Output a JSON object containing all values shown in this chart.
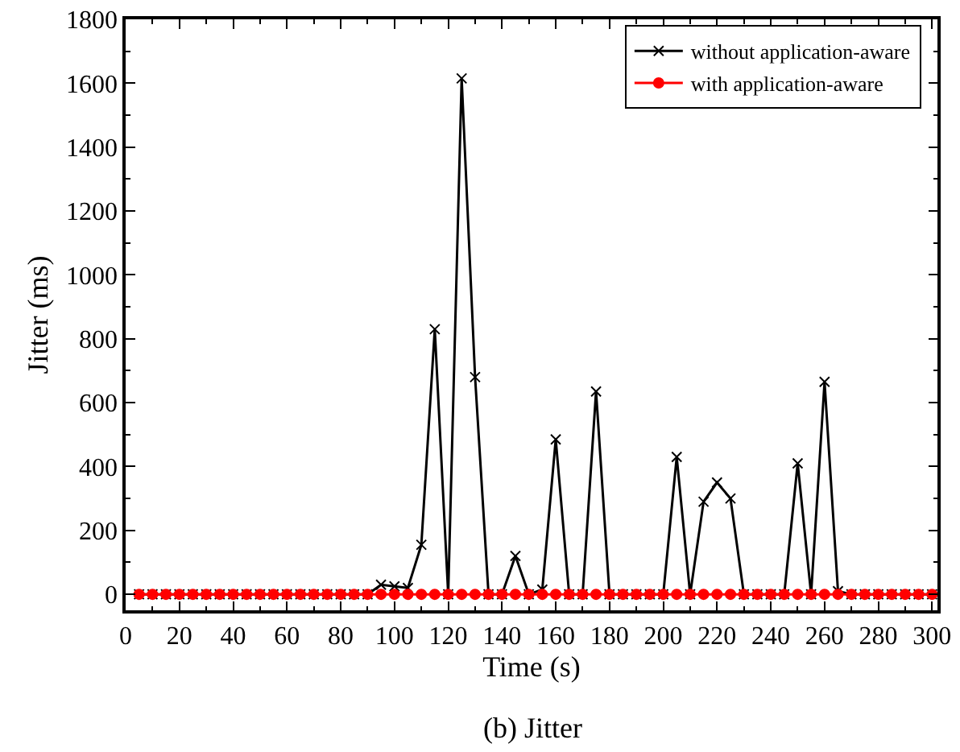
{
  "chart_data": {
    "type": "line",
    "title": "(b) Jitter",
    "xlabel": "Time (s)",
    "ylabel": "Jitter (ms)",
    "x": [
      5,
      10,
      15,
      20,
      25,
      30,
      35,
      40,
      45,
      50,
      55,
      60,
      65,
      70,
      75,
      80,
      85,
      90,
      95,
      100,
      105,
      110,
      115,
      120,
      125,
      130,
      135,
      140,
      145,
      150,
      155,
      160,
      165,
      170,
      175,
      180,
      185,
      190,
      195,
      200,
      205,
      210,
      215,
      220,
      225,
      230,
      235,
      240,
      245,
      250,
      255,
      260,
      265,
      270,
      275,
      280,
      285,
      290,
      295,
      300
    ],
    "series": [
      {
        "name": "without application-aware",
        "color": "#000000",
        "marker": "cross",
        "values": [
          0,
          0,
          0,
          0,
          0,
          0,
          0,
          0,
          0,
          0,
          0,
          0,
          0,
          0,
          0,
          0,
          0,
          0,
          30,
          25,
          20,
          155,
          830,
          0,
          1615,
          680,
          0,
          0,
          120,
          0,
          15,
          485,
          0,
          0,
          635,
          0,
          0,
          0,
          0,
          0,
          430,
          0,
          290,
          350,
          300,
          0,
          0,
          0,
          0,
          410,
          0,
          665,
          10,
          0,
          0,
          0,
          0,
          0,
          0,
          0
        ]
      },
      {
        "name": "with application-aware",
        "color": "#ff0000",
        "marker": "circle",
        "values": [
          0,
          0,
          0,
          0,
          0,
          0,
          0,
          0,
          0,
          0,
          0,
          0,
          0,
          0,
          0,
          0,
          0,
          0,
          0,
          0,
          0,
          0,
          0,
          0,
          0,
          0,
          0,
          0,
          0,
          0,
          0,
          0,
          0,
          0,
          0,
          0,
          0,
          0,
          0,
          0,
          0,
          0,
          0,
          0,
          0,
          0,
          0,
          0,
          0,
          0,
          0,
          0,
          0,
          0,
          0,
          0,
          0,
          0,
          0,
          0
        ]
      }
    ],
    "xlim": [
      0,
      302
    ],
    "xticks": [
      0,
      20,
      40,
      60,
      80,
      100,
      120,
      140,
      160,
      180,
      200,
      220,
      240,
      260,
      280,
      300
    ],
    "ylim": [
      -50,
      1800
    ],
    "yticks": [
      0,
      200,
      400,
      600,
      800,
      1000,
      1200,
      1400,
      1600,
      1800
    ],
    "grid": false,
    "legend": "top right",
    "line_style": "solid"
  }
}
